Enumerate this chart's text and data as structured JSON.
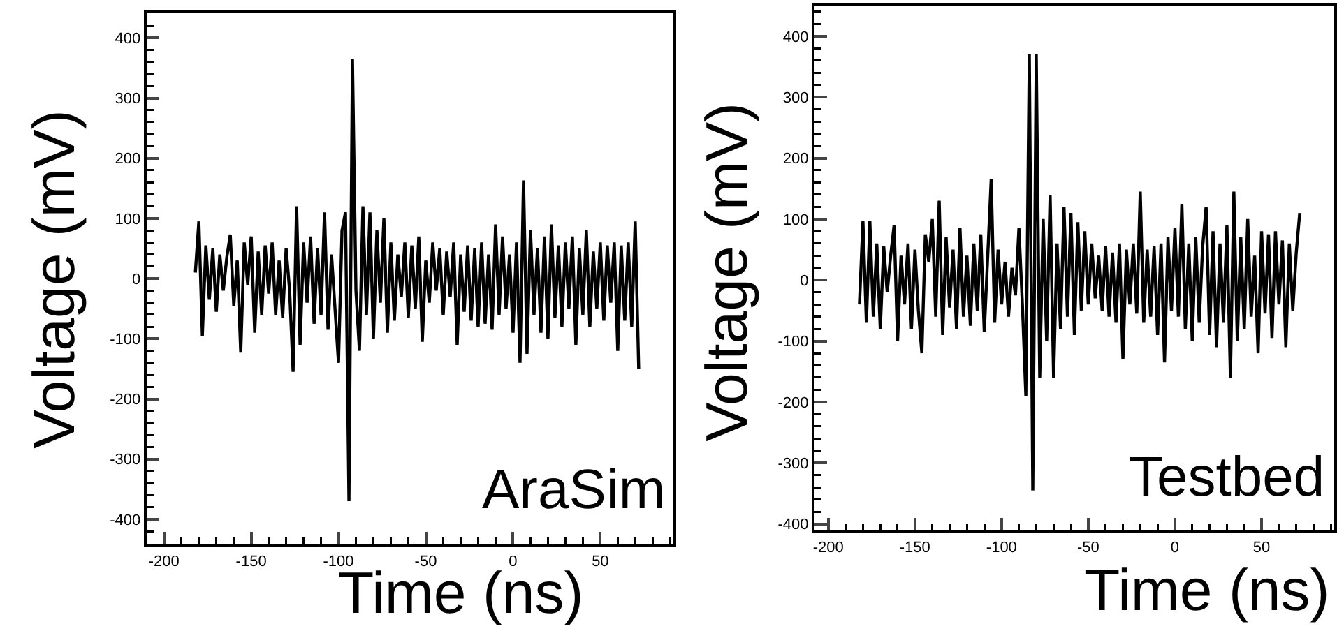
{
  "chart_data": [
    {
      "type": "line",
      "xlabel": "Time (ns)",
      "ylabel": "Voltage (mV)",
      "annotations": [
        "AraSim"
      ],
      "x": [
        -182,
        -180,
        -178,
        -176,
        -174,
        -172,
        -170,
        -168,
        -166,
        -164,
        -162,
        -160,
        -158,
        -156,
        -154,
        -152,
        -150,
        -148,
        -146,
        -144,
        -142,
        -140,
        -138,
        -136,
        -134,
        -132,
        -130,
        -128,
        -126,
        -124,
        -122,
        -120,
        -118,
        -116,
        -114,
        -112,
        -110,
        -108,
        -106,
        -104,
        -102,
        -100,
        -98,
        -96,
        -94,
        -92,
        -90,
        -88,
        -86,
        -84,
        -82,
        -80,
        -78,
        -76,
        -74,
        -72,
        -70,
        -68,
        -66,
        -64,
        -62,
        -60,
        -58,
        -56,
        -54,
        -52,
        -50,
        -48,
        -46,
        -44,
        -42,
        -40,
        -38,
        -36,
        -34,
        -32,
        -30,
        -28,
        -26,
        -24,
        -22,
        -20,
        -18,
        -16,
        -14,
        -12,
        -10,
        -8,
        -6,
        -4,
        -2,
        0,
        2,
        4,
        6,
        8,
        10,
        12,
        14,
        16,
        18,
        20,
        22,
        24,
        26,
        28,
        30,
        32,
        34,
        36,
        38,
        40,
        42,
        44,
        46,
        48,
        50,
        52,
        54,
        56,
        58,
        60,
        62,
        64,
        66,
        68,
        70,
        72
      ],
      "series": [
        {
          "color": "#000000",
          "values": [
            10,
            95,
            -95,
            55,
            -35,
            50,
            -55,
            40,
            -20,
            35,
            73,
            -45,
            30,
            -123,
            60,
            -10,
            70,
            -90,
            45,
            -60,
            55,
            -25,
            60,
            -60,
            30,
            -65,
            50,
            -20,
            -155,
            120,
            -110,
            60,
            -40,
            70,
            -75,
            50,
            -60,
            110,
            -85,
            40,
            -50,
            -140,
            80,
            110,
            -370,
            365,
            -20,
            -120,
            120,
            -60,
            110,
            -100,
            80,
            -40,
            100,
            -90,
            60,
            -70,
            40,
            -30,
            60,
            -65,
            55,
            -50,
            70,
            -105,
            30,
            -40,
            60,
            -20,
            50,
            -60,
            45,
            -30,
            60,
            -110,
            40,
            -55,
            55,
            -70,
            50,
            -80,
            60,
            -75,
            40,
            -85,
            90,
            -60,
            70,
            -50,
            40,
            -90,
            60,
            -140,
            163,
            -125,
            80,
            -60,
            50,
            -90,
            70,
            -100,
            90,
            -65,
            55,
            -80,
            60,
            -50,
            70,
            -110,
            50,
            -60,
            80,
            -80,
            45,
            -50,
            60,
            -70,
            55,
            -40,
            60,
            -120,
            55,
            -70,
            60,
            -80,
            95,
            -150
          ]
        }
      ],
      "xlim": [
        -210,
        92
      ],
      "ylim": [
        -442,
        442
      ],
      "xticks": [
        -200,
        -150,
        -100,
        -50,
        0,
        50
      ],
      "yticks": [
        -400,
        -300,
        -200,
        -100,
        0,
        100,
        200,
        300,
        400
      ],
      "grid": false,
      "marker": "none",
      "line_style": "solid"
    },
    {
      "type": "line",
      "xlabel": "Time (ns)",
      "ylabel": "Voltage (mV)",
      "annotations": [
        "Testbed"
      ],
      "x": [
        -182,
        -180,
        -178,
        -176,
        -174,
        -172,
        -170,
        -168,
        -166,
        -164,
        -162,
        -160,
        -158,
        -156,
        -154,
        -152,
        -150,
        -148,
        -146,
        -144,
        -142,
        -140,
        -138,
        -136,
        -134,
        -132,
        -130,
        -128,
        -126,
        -124,
        -122,
        -120,
        -118,
        -116,
        -114,
        -112,
        -110,
        -108,
        -106,
        -104,
        -102,
        -100,
        -98,
        -96,
        -94,
        -92,
        -90,
        -88,
        -86,
        -84,
        -82,
        -80,
        -78,
        -76,
        -74,
        -72,
        -70,
        -68,
        -66,
        -64,
        -62,
        -60,
        -58,
        -56,
        -54,
        -52,
        -50,
        -48,
        -46,
        -44,
        -42,
        -40,
        -38,
        -36,
        -34,
        -32,
        -30,
        -28,
        -26,
        -24,
        -22,
        -20,
        -18,
        -16,
        -14,
        -12,
        -10,
        -8,
        -6,
        -4,
        -2,
        0,
        2,
        4,
        6,
        8,
        10,
        12,
        14,
        16,
        18,
        20,
        22,
        24,
        26,
        28,
        30,
        32,
        34,
        36,
        38,
        40,
        42,
        44,
        46,
        48,
        50,
        52,
        54,
        56,
        58,
        60,
        62,
        64,
        66,
        68,
        70,
        72
      ],
      "series": [
        {
          "color": "#000000",
          "values": [
            -40,
            97,
            -70,
            97,
            -60,
            60,
            -80,
            55,
            -20,
            40,
            90,
            -100,
            40,
            -40,
            60,
            -80,
            50,
            -50,
            -120,
            75,
            30,
            100,
            -60,
            130,
            -90,
            70,
            -45,
            50,
            -80,
            85,
            -60,
            40,
            -75,
            60,
            -50,
            75,
            -85,
            40,
            165,
            -70,
            50,
            -40,
            30,
            -60,
            20,
            -25,
            85,
            -40,
            -190,
            370,
            -345,
            370,
            -160,
            100,
            -100,
            140,
            -160,
            60,
            -80,
            120,
            -60,
            110,
            -90,
            95,
            -50,
            80,
            -40,
            60,
            -30,
            40,
            -50,
            55,
            -60,
            45,
            -70,
            60,
            -130,
            50,
            -40,
            60,
            -55,
            145,
            -70,
            50,
            -60,
            55,
            -90,
            60,
            -135,
            70,
            -50,
            85,
            -60,
            125,
            -80,
            60,
            -100,
            70,
            -70,
            55,
            120,
            -90,
            80,
            -110,
            60,
            -70,
            90,
            -160,
            145,
            -100,
            70,
            -80,
            100,
            -60,
            40,
            -120,
            80,
            -55,
            75,
            -95,
            80,
            -40,
            65,
            -110,
            60,
            -50,
            45,
            110
          ]
        }
      ],
      "xlim": [
        -208,
        92
      ],
      "ylim": [
        -411,
        450
      ],
      "xticks": [
        -200,
        -150,
        -100,
        -50,
        0,
        50
      ],
      "yticks": [
        -400,
        -300,
        -200,
        -100,
        0,
        100,
        200,
        300,
        400
      ],
      "grid": false,
      "marker": "none",
      "line_style": "solid"
    }
  ]
}
